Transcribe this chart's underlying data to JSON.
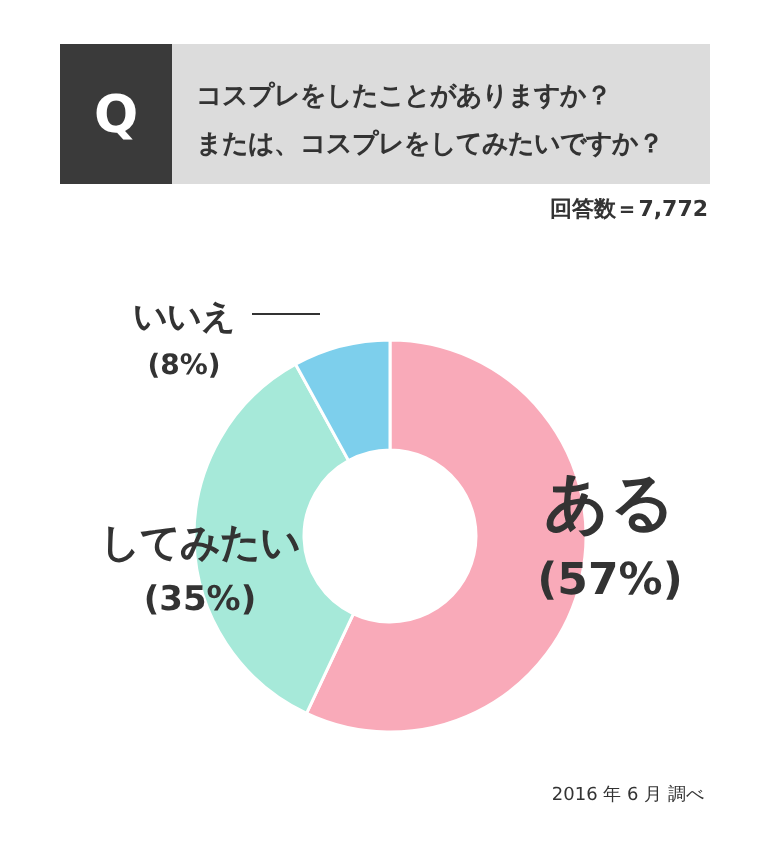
{
  "chart_data": {
    "type": "donut",
    "title": "コスプレをしたことがありますか？",
    "subtitle": "または、コスプレをしてみたいですか？",
    "categories": [
      "ある",
      "してみたい",
      "いいえ"
    ],
    "values": [
      57,
      35,
      8
    ],
    "colors": [
      "#f9aab9",
      "#a6e9d9",
      "#7dcfec"
    ],
    "value_labels": [
      "(57%)",
      "(35%)",
      "(8%)"
    ],
    "annotations": [
      "Q",
      "回答数＝7,772",
      "2016 年 6 月 調べ"
    ]
  }
}
